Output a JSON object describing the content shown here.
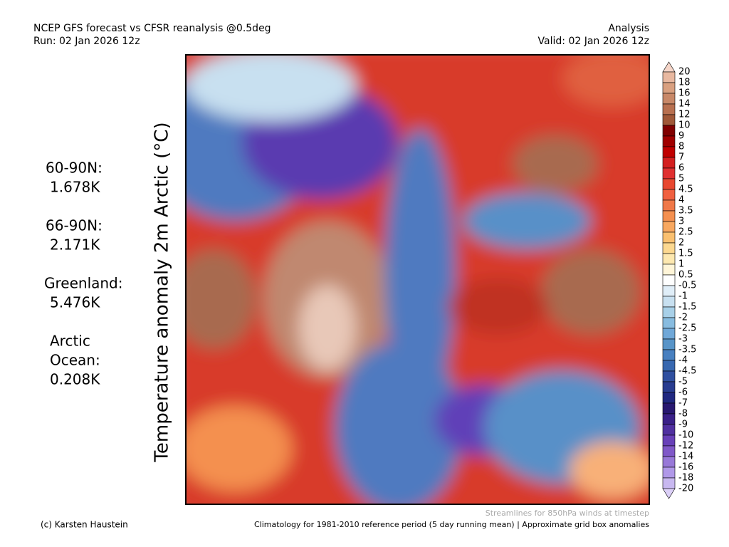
{
  "header": {
    "title": "NCEP GFS forecast vs CFSR reanalysis @0.5deg",
    "run": "Run: 02 Jan 2026 12z",
    "mode": "Analysis",
    "valid": "Valid: 02 Jan 2026 12z"
  },
  "axis_title": "Temperature anomaly 2m Arctic (°C)",
  "stats": [
    {
      "label_lines": [
        "60-90N:"
      ],
      "value": "1.678K"
    },
    {
      "label_lines": [
        "66-90N:"
      ],
      "value": "2.171K"
    },
    {
      "label_lines": [
        "Greenland:"
      ],
      "value": "5.476K"
    },
    {
      "label_lines": [
        "Arctic",
        "Ocean:"
      ],
      "value": "0.208K"
    }
  ],
  "colorbar": {
    "labels": [
      "20",
      "18",
      "16",
      "14",
      "12",
      "10",
      "9",
      "8",
      "7",
      "6",
      "5",
      "4.5",
      "4",
      "3.5",
      "3",
      "2.5",
      "2",
      "1.5",
      "1",
      "0.5",
      "-0.5",
      "-1",
      "-1.5",
      "-2",
      "-2.5",
      "-3",
      "-3.5",
      "-4",
      "-4.5",
      "-5",
      "-6",
      "-7",
      "-8",
      "-9",
      "-10",
      "-12",
      "-14",
      "-16",
      "-18",
      "-20"
    ],
    "colors": [
      "#f5d5c8",
      "#e8b8a0",
      "#d9a080",
      "#c88868",
      "#b87050",
      "#a05838",
      "#800000",
      "#a00000",
      "#c00000",
      "#d42020",
      "#e03030",
      "#e84830",
      "#f06040",
      "#f07848",
      "#f49050",
      "#f8a860",
      "#fac070",
      "#fcd890",
      "#fde8b0",
      "#fff5d8",
      "#ffffff",
      "#e0eef8",
      "#c8e0f0",
      "#a8d0e8",
      "#88bce0",
      "#70a8d8",
      "#5894c8",
      "#4880c0",
      "#3868b0",
      "#3050a0",
      "#283c90",
      "#202880",
      "#281870",
      "#3a2088",
      "#5030a0",
      "#6840b8",
      "#8058c8",
      "#9878d8",
      "#b098e8",
      "#c8b8f0",
      "#dcd0f8"
    ]
  },
  "footer": {
    "streamlines": "Streamlines for 850hPa winds at timestep",
    "credit": "(c) Karsten Haustein",
    "note": "Climatology for 1981-2010 reference period (5 day running mean) | Approximate grid box anomalies"
  }
}
